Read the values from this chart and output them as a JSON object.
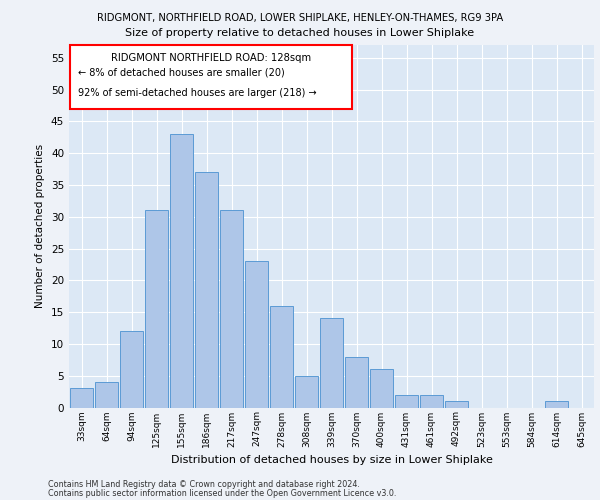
{
  "title1": "RIDGMONT, NORTHFIELD ROAD, LOWER SHIPLAKE, HENLEY-ON-THAMES, RG9 3PA",
  "title2": "Size of property relative to detached houses in Lower Shiplake",
  "xlabel": "Distribution of detached houses by size in Lower Shiplake",
  "ylabel": "Number of detached properties",
  "categories": [
    "33sqm",
    "64sqm",
    "94sqm",
    "125sqm",
    "155sqm",
    "186sqm",
    "217sqm",
    "247sqm",
    "278sqm",
    "308sqm",
    "339sqm",
    "370sqm",
    "400sqm",
    "431sqm",
    "461sqm",
    "492sqm",
    "523sqm",
    "553sqm",
    "584sqm",
    "614sqm",
    "645sqm"
  ],
  "values": [
    3,
    4,
    12,
    31,
    43,
    37,
    31,
    23,
    16,
    5,
    14,
    8,
    6,
    2,
    2,
    1,
    0,
    0,
    0,
    1,
    0
  ],
  "bar_color": "#aec6e8",
  "bar_edge_color": "#5b9bd5",
  "annotation_title": "RIDGMONT NORTHFIELD ROAD: 128sqm",
  "annotation_line2": "← 8% of detached houses are smaller (20)",
  "annotation_line3": "92% of semi-detached houses are larger (218) →",
  "ylim": [
    0,
    57
  ],
  "yticks": [
    0,
    5,
    10,
    15,
    20,
    25,
    30,
    35,
    40,
    45,
    50,
    55
  ],
  "background_color": "#eef2f8",
  "plot_bg_color": "#dce8f5",
  "footer1": "Contains HM Land Registry data © Crown copyright and database right 2024.",
  "footer2": "Contains public sector information licensed under the Open Government Licence v3.0."
}
